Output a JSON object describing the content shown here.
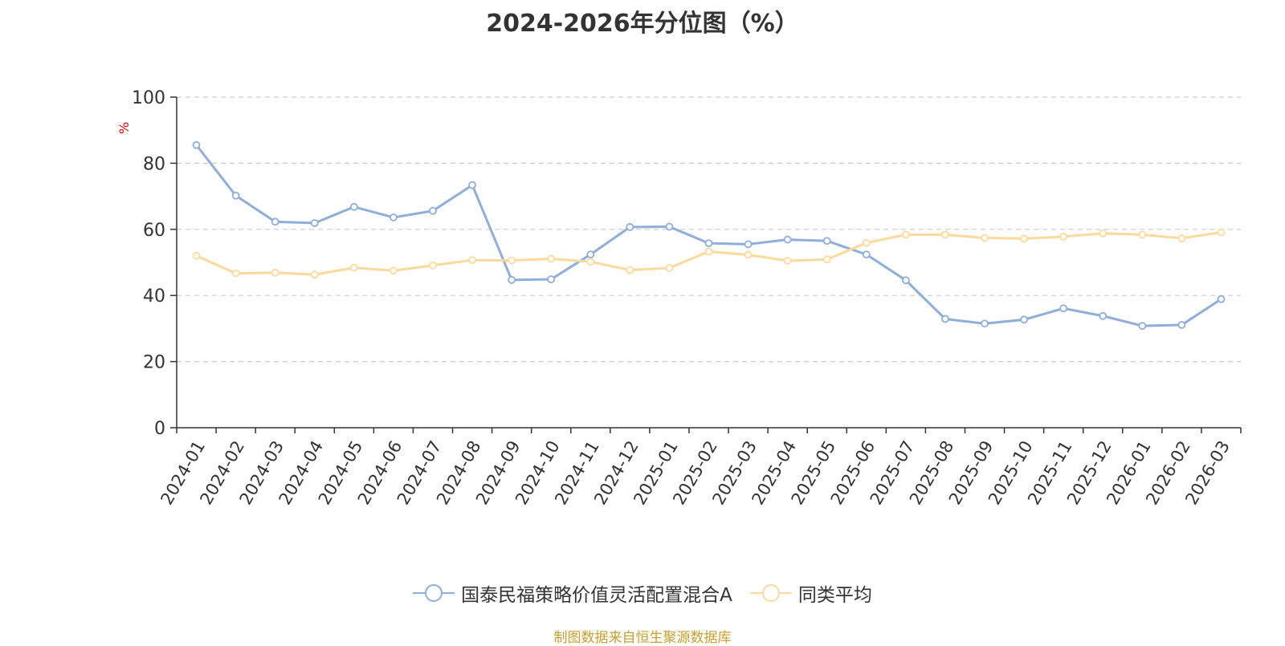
{
  "title": "2024-2026年分位图（%）",
  "source_note": "制图数据来自恒生聚源数据库",
  "colors": {
    "series1": "#8eaedb",
    "series2": "#fdd99b",
    "axis": "#333333",
    "grid": "#cccccc"
  },
  "chart_data": {
    "type": "line",
    "title": "2024-2026年分位图（%）",
    "ylabel": "%",
    "ylim": [
      0,
      100
    ],
    "yticks": [
      0,
      20,
      40,
      60,
      80,
      100
    ],
    "grid": true,
    "legend_position": "bottom-center",
    "categories": [
      "2024-01",
      "2024-02",
      "2024-03",
      "2024-04",
      "2024-05",
      "2024-06",
      "2024-07",
      "2024-08",
      "2024-09",
      "2024-10",
      "2024-11",
      "2024-12",
      "2025-01",
      "2025-02",
      "2025-03",
      "2025-04",
      "2025-05",
      "2025-06",
      "2025-07",
      "2025-08",
      "2025-09",
      "2025-10",
      "2025-11",
      "2025-12",
      "2026-01",
      "2026-02",
      "2026-03"
    ],
    "series": [
      {
        "name": "国泰民福策略价值灵活配置混合A",
        "values": [
          85.5,
          70.2,
          62.3,
          61.9,
          66.8,
          63.6,
          65.6,
          73.4,
          44.7,
          44.9,
          52.4,
          60.7,
          60.8,
          55.8,
          55.5,
          56.9,
          56.5,
          52.4,
          44.6,
          32.9,
          31.5,
          32.7,
          36.1,
          33.8,
          30.8,
          31.1,
          38.9
        ]
      },
      {
        "name": "同类平均",
        "values": [
          52.0,
          46.7,
          46.9,
          46.3,
          48.4,
          47.5,
          49.1,
          50.7,
          50.6,
          51.1,
          50.2,
          47.7,
          48.3,
          53.3,
          52.3,
          50.5,
          50.9,
          55.9,
          58.4,
          58.4,
          57.4,
          57.2,
          57.8,
          58.8,
          58.4,
          57.3,
          59.1
        ]
      }
    ]
  }
}
